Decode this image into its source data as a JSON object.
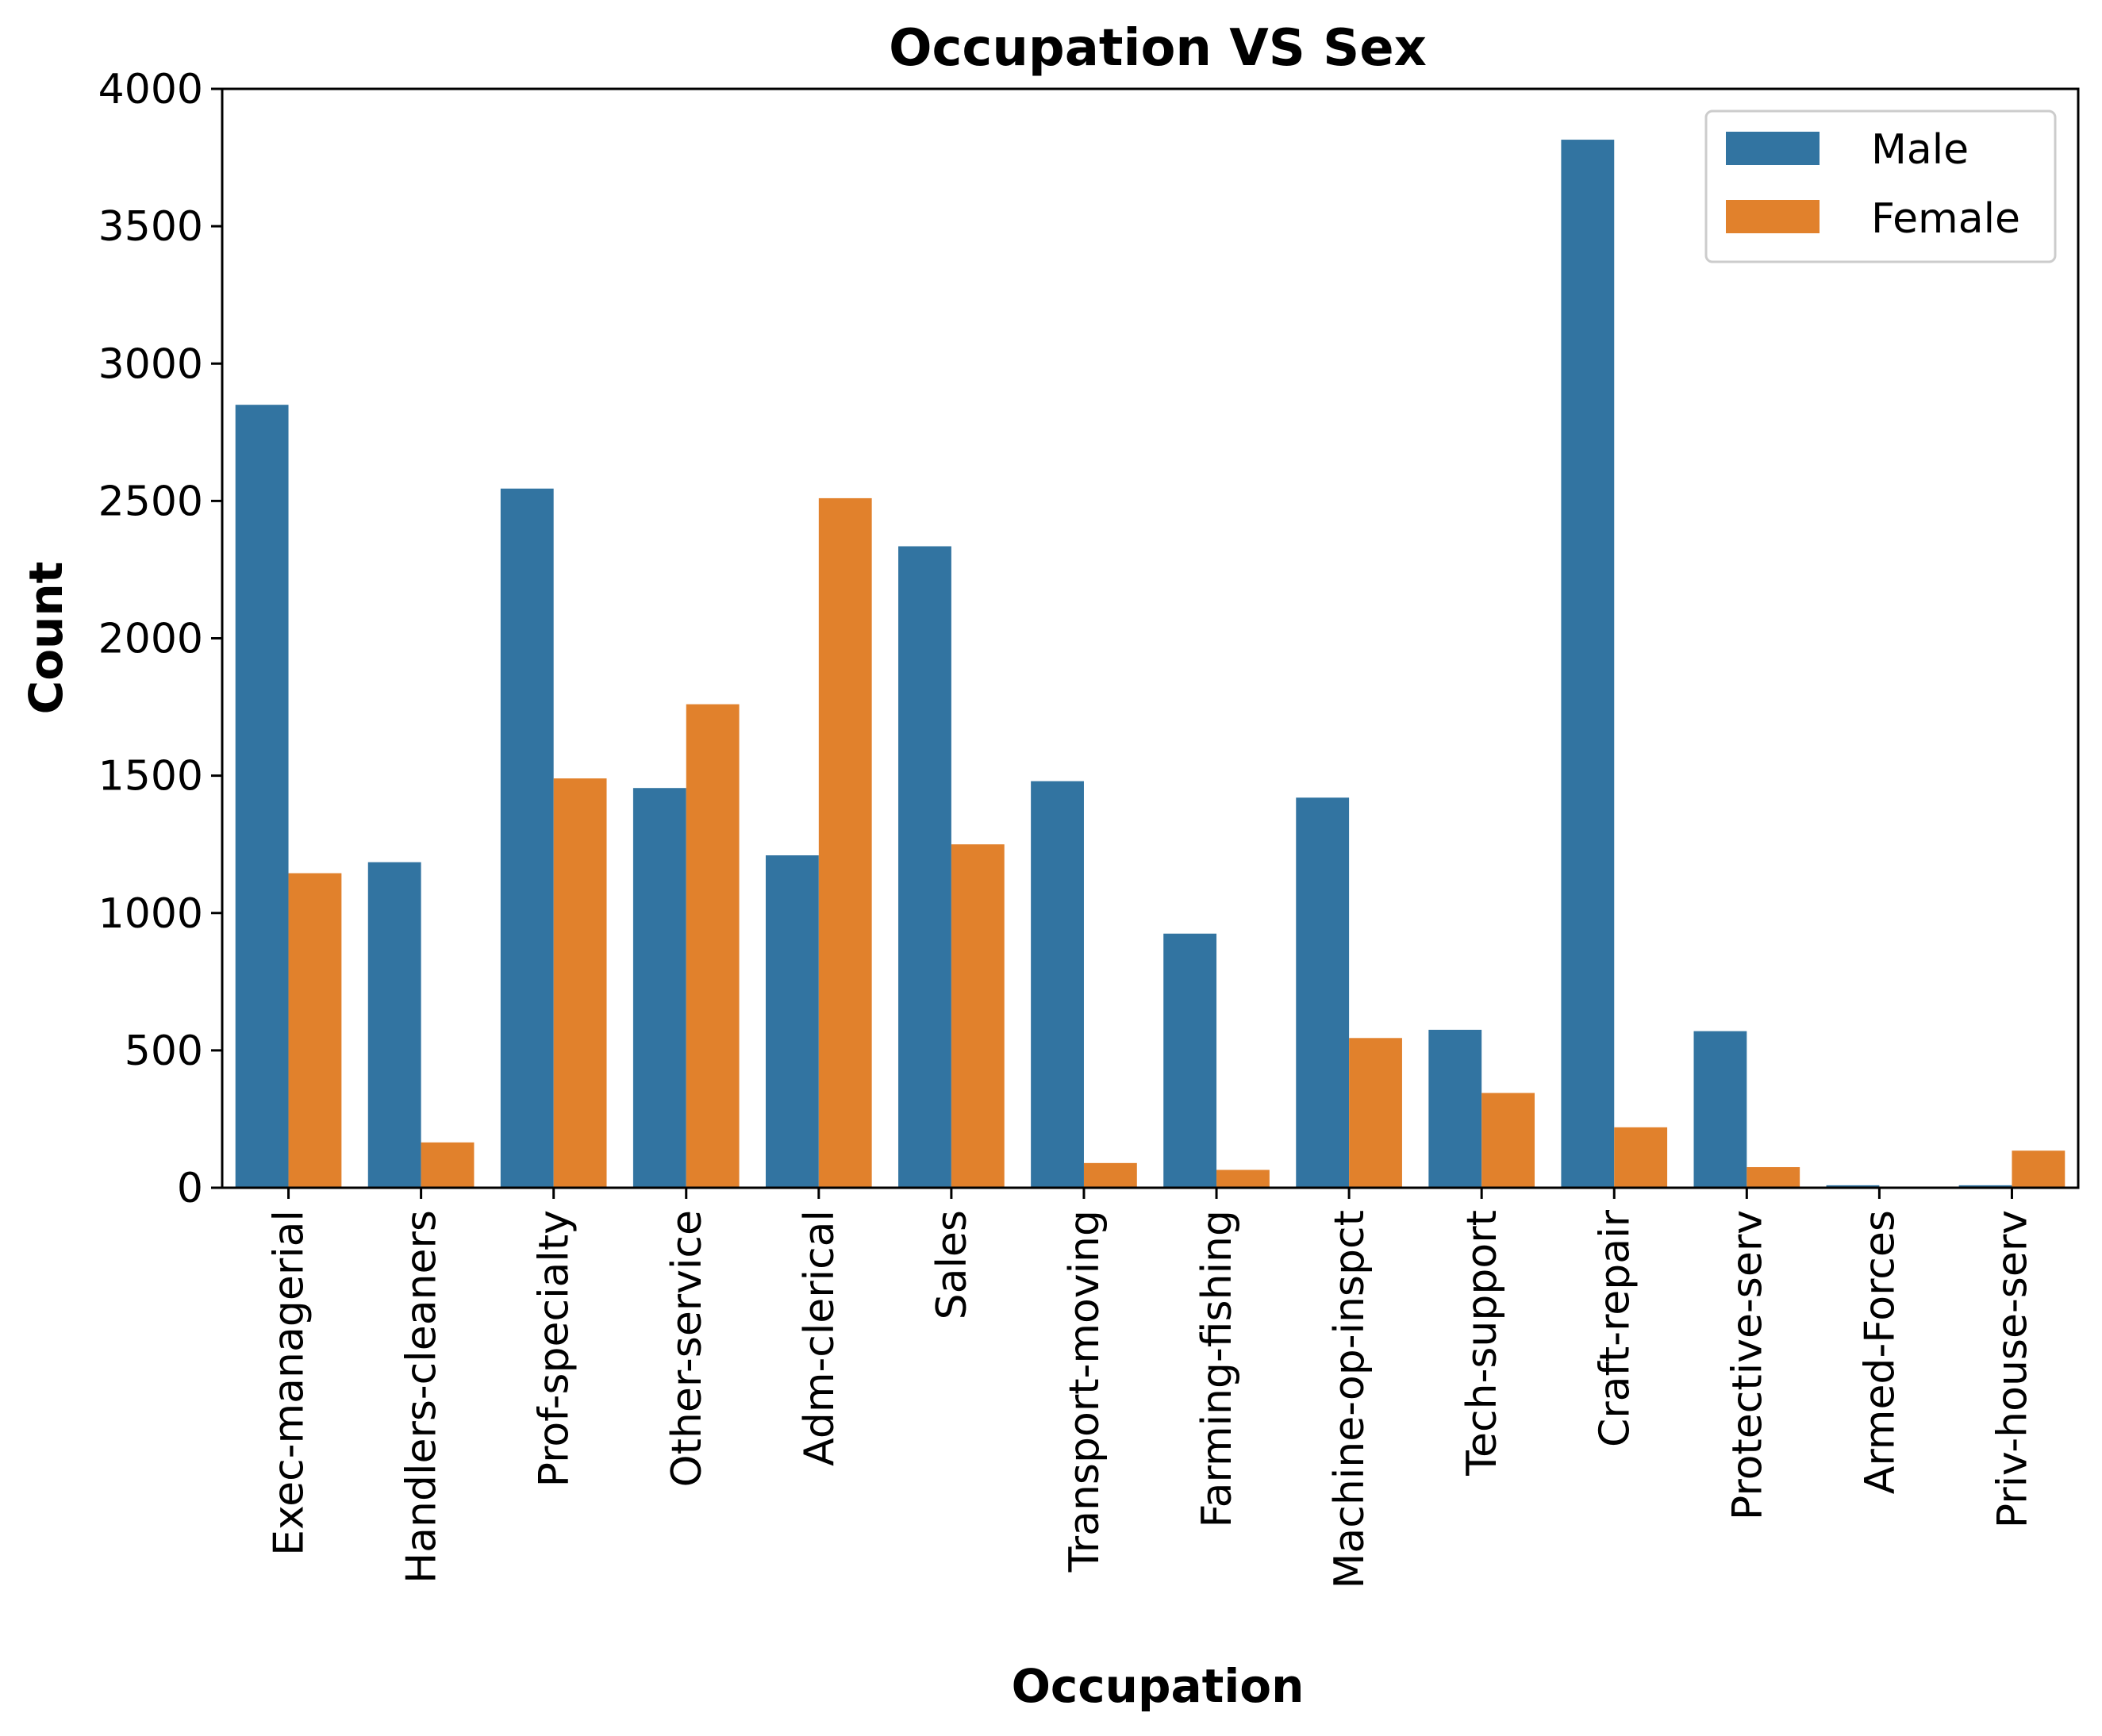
{
  "chart_data": {
    "type": "bar",
    "title": "Occupation VS Sex",
    "xlabel": "Occupation",
    "ylabel": "Count",
    "ylim": [
      0,
      4000
    ],
    "yticks": [
      "0",
      "500",
      "1000",
      "1500",
      "2000",
      "2500",
      "3000",
      "3500",
      "4000"
    ],
    "categories": [
      "Exec-managerial",
      "Handlers-cleaners",
      "Prof-specialty",
      "Other-service",
      "Adm-clerical",
      "Sales",
      "Transport-moving",
      "Farming-fishing",
      "Machine-op-inspct",
      "Tech-support",
      "Craft-repair",
      "Protective-serv",
      "Armed-Forces",
      "Priv-house-serv"
    ],
    "series": [
      {
        "name": "Male",
        "color": "#3274a1",
        "values": [
          2850,
          1185,
          2545,
          1455,
          1210,
          2335,
          1480,
          925,
          1420,
          575,
          3815,
          570,
          9,
          9
        ]
      },
      {
        "name": "Female",
        "color": "#e1812c",
        "values": [
          1145,
          165,
          1490,
          1760,
          2510,
          1250,
          90,
          65,
          545,
          345,
          220,
          75,
          0,
          135
        ]
      }
    ],
    "legend_position": "top-right",
    "grid": false
  }
}
